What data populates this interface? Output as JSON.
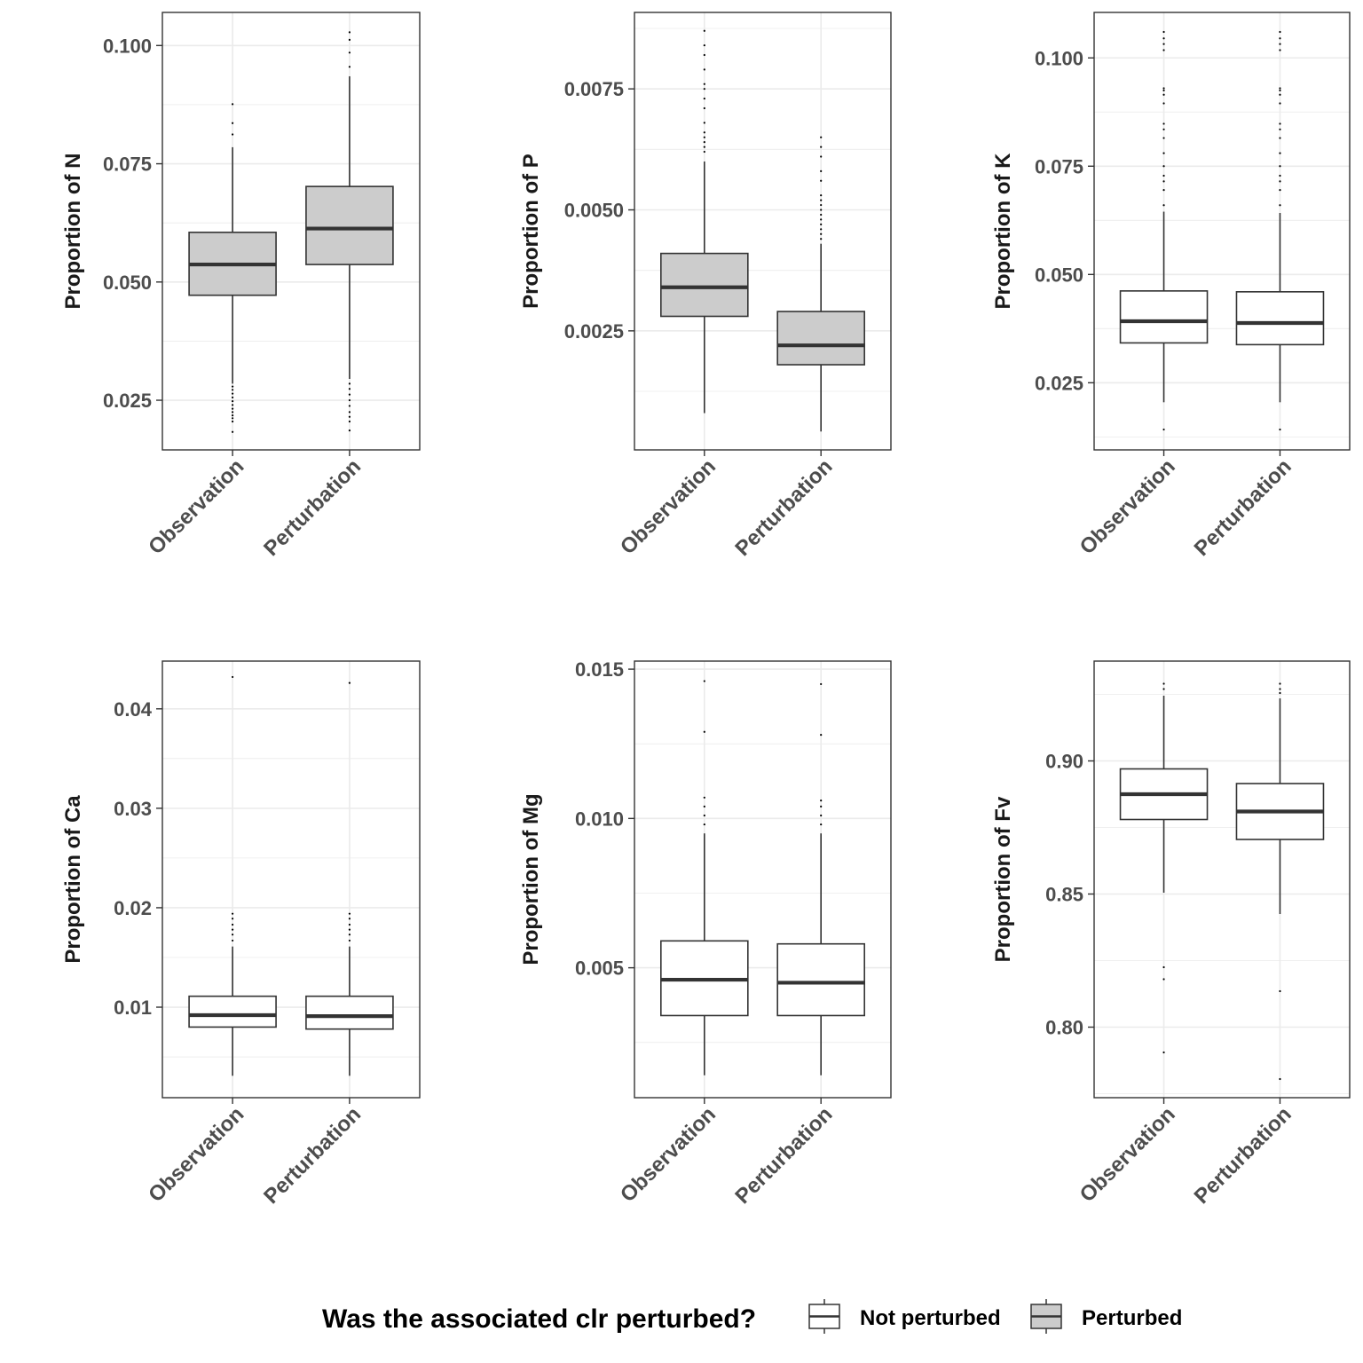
{
  "chart_data": [
    {
      "type": "box",
      "ylabel": "Proportion of N",
      "categories": [
        "Observation",
        "Perturbation"
      ],
      "yticks": [
        0.025,
        0.05,
        0.075,
        0.1
      ],
      "ytick_labels": [
        "0.025",
        "0.050",
        "0.075",
        "0.100"
      ],
      "ylim": [
        0.0145,
        0.107
      ],
      "minor_grid": true,
      "boxes": [
        {
          "category": "Observation",
          "group": "Perturbed",
          "whisker_low": 0.0285,
          "q1": 0.0472,
          "median": 0.0537,
          "q3": 0.0605,
          "whisker_high": 0.0785,
          "outliers": [
            0.0183,
            0.0205,
            0.0212,
            0.0218,
            0.0225,
            0.0232,
            0.024,
            0.0248,
            0.0256,
            0.0264,
            0.0272,
            0.0279,
            0.0812,
            0.0836,
            0.0876
          ]
        },
        {
          "category": "Perturbation",
          "group": "Perturbed",
          "whisker_low": 0.0295,
          "q1": 0.0537,
          "median": 0.0613,
          "q3": 0.0702,
          "whisker_high": 0.0935,
          "outliers": [
            0.0186,
            0.0205,
            0.0215,
            0.0225,
            0.0238,
            0.025,
            0.0262,
            0.0274,
            0.0285,
            0.0955,
            0.0985,
            0.1012,
            0.1028
          ]
        }
      ]
    },
    {
      "type": "box",
      "ylabel": "Proportion of P",
      "categories": [
        "Observation",
        "Perturbation"
      ],
      "yticks": [
        0.0025,
        0.005,
        0.0075
      ],
      "ytick_labels": [
        "0.0025",
        "0.0050",
        "0.0075"
      ],
      "ylim": [
        4e-05,
        0.00908
      ],
      "minor_grid": true,
      "boxes": [
        {
          "category": "Observation",
          "group": "Perturbed",
          "whisker_low": 0.0008,
          "q1": 0.0028,
          "median": 0.0034,
          "q3": 0.0041,
          "whisker_high": 0.006,
          "outliers": [
            0.0062,
            0.0063,
            0.0064,
            0.0065,
            0.0066,
            0.0068,
            0.0071,
            0.0073,
            0.0075,
            0.0076,
            0.0079,
            0.0082,
            0.0084,
            0.0087
          ]
        },
        {
          "category": "Perturbation",
          "group": "Perturbed",
          "whisker_low": 0.00042,
          "q1": 0.0018,
          "median": 0.0022,
          "q3": 0.0029,
          "whisker_high": 0.0043,
          "outliers": [
            0.0044,
            0.0045,
            0.0046,
            0.0047,
            0.0048,
            0.0049,
            0.005,
            0.0051,
            0.0052,
            0.0053,
            0.0056,
            0.0058,
            0.0061,
            0.0063,
            0.0065
          ]
        }
      ]
    },
    {
      "type": "box",
      "ylabel": "Proportion of K",
      "categories": [
        "Observation",
        "Perturbation"
      ],
      "yticks": [
        0.025,
        0.05,
        0.075,
        0.1
      ],
      "ytick_labels": [
        "0.025",
        "0.050",
        "0.075",
        "0.100"
      ],
      "ylim": [
        0.0095,
        0.1105
      ],
      "minor_grid": true,
      "boxes": [
        {
          "category": "Observation",
          "group": "Not perturbed",
          "whisker_low": 0.0205,
          "q1": 0.0342,
          "median": 0.0392,
          "q3": 0.0462,
          "whisker_high": 0.0645,
          "outliers": [
            0.0142,
            0.066,
            0.0695,
            0.0715,
            0.0728,
            0.075,
            0.078,
            0.0815,
            0.0835,
            0.0848,
            0.0895,
            0.0915,
            0.0925,
            0.093,
            0.1018,
            0.1032,
            0.1045,
            0.106
          ]
        },
        {
          "category": "Perturbation",
          "group": "Not perturbed",
          "whisker_low": 0.0205,
          "q1": 0.0338,
          "median": 0.0388,
          "q3": 0.046,
          "whisker_high": 0.0642,
          "outliers": [
            0.0142,
            0.066,
            0.0695,
            0.0715,
            0.0728,
            0.075,
            0.078,
            0.0815,
            0.0835,
            0.0848,
            0.0895,
            0.0915,
            0.0925,
            0.093,
            0.1018,
            0.1032,
            0.1045,
            0.106
          ]
        }
      ]
    },
    {
      "type": "box",
      "ylabel": "Proportion of Ca",
      "categories": [
        "Observation",
        "Perturbation"
      ],
      "yticks": [
        0.01,
        0.02,
        0.03,
        0.04
      ],
      "ytick_labels": [
        "0.01",
        "0.02",
        "0.03",
        "0.04"
      ],
      "ylim": [
        0.0009,
        0.0448
      ],
      "minor_grid": true,
      "boxes": [
        {
          "category": "Observation",
          "group": "Not perturbed",
          "whisker_low": 0.0031,
          "q1": 0.008,
          "median": 0.0092,
          "q3": 0.0111,
          "whisker_high": 0.0161,
          "outliers": [
            0.0167,
            0.0173,
            0.0178,
            0.0183,
            0.0189,
            0.0194,
            0.0432
          ]
        },
        {
          "category": "Perturbation",
          "group": "Not perturbed",
          "whisker_low": 0.0031,
          "q1": 0.0078,
          "median": 0.0091,
          "q3": 0.0111,
          "whisker_high": 0.0161,
          "outliers": [
            0.0167,
            0.0173,
            0.0178,
            0.0183,
            0.0189,
            0.0194,
            0.0426
          ]
        }
      ]
    },
    {
      "type": "box",
      "ylabel": "Proportion of Mg",
      "categories": [
        "Observation",
        "Perturbation"
      ],
      "yticks": [
        0.005,
        0.01,
        0.015
      ],
      "ytick_labels": [
        "0.005",
        "0.010",
        "0.015"
      ],
      "ylim": [
        0.00065,
        0.01527
      ],
      "minor_grid": true,
      "boxes": [
        {
          "category": "Observation",
          "group": "Not perturbed",
          "whisker_low": 0.0014,
          "q1": 0.0034,
          "median": 0.0046,
          "q3": 0.0059,
          "whisker_high": 0.0095,
          "outliers": [
            0.0098,
            0.0101,
            0.0104,
            0.0107,
            0.0129,
            0.0146
          ]
        },
        {
          "category": "Perturbation",
          "group": "Not perturbed",
          "whisker_low": 0.0014,
          "q1": 0.0034,
          "median": 0.0045,
          "q3": 0.0058,
          "whisker_high": 0.0095,
          "outliers": [
            0.0098,
            0.0101,
            0.0104,
            0.0106,
            0.0128,
            0.0145
          ]
        }
      ]
    },
    {
      "type": "box",
      "ylabel": "Proportion of Fv",
      "categories": [
        "Observation",
        "Perturbation"
      ],
      "yticks": [
        0.8,
        0.85,
        0.9
      ],
      "ytick_labels": [
        "0.80",
        "0.85",
        "0.90"
      ],
      "ylim": [
        0.7735,
        0.9375
      ],
      "minor_grid": true,
      "boxes": [
        {
          "category": "Observation",
          "group": "Not perturbed",
          "whisker_low": 0.8505,
          "q1": 0.878,
          "median": 0.8875,
          "q3": 0.897,
          "whisker_high": 0.9245,
          "outliers": [
            0.7905,
            0.818,
            0.8225,
            0.927,
            0.929
          ]
        },
        {
          "category": "Perturbation",
          "group": "Not perturbed",
          "whisker_low": 0.8425,
          "q1": 0.8705,
          "median": 0.881,
          "q3": 0.8915,
          "whisker_high": 0.9235,
          "outliers": [
            0.7805,
            0.8135,
            0.9255,
            0.927,
            0.929
          ]
        }
      ]
    }
  ],
  "legend": {
    "title": "Was the associated clr perturbed?",
    "entries": [
      {
        "label": "Not perturbed",
        "fill": "#ffffff"
      },
      {
        "label": "Perturbed",
        "fill": "#cccccc"
      }
    ]
  },
  "colors": {
    "perturbed_fill": "#cccccc",
    "not_perturbed_fill": "#ffffff",
    "box_line": "#333333",
    "panel_border": "#333333",
    "grid": "#ebebeb",
    "tick_text": "#4d4d4d"
  }
}
